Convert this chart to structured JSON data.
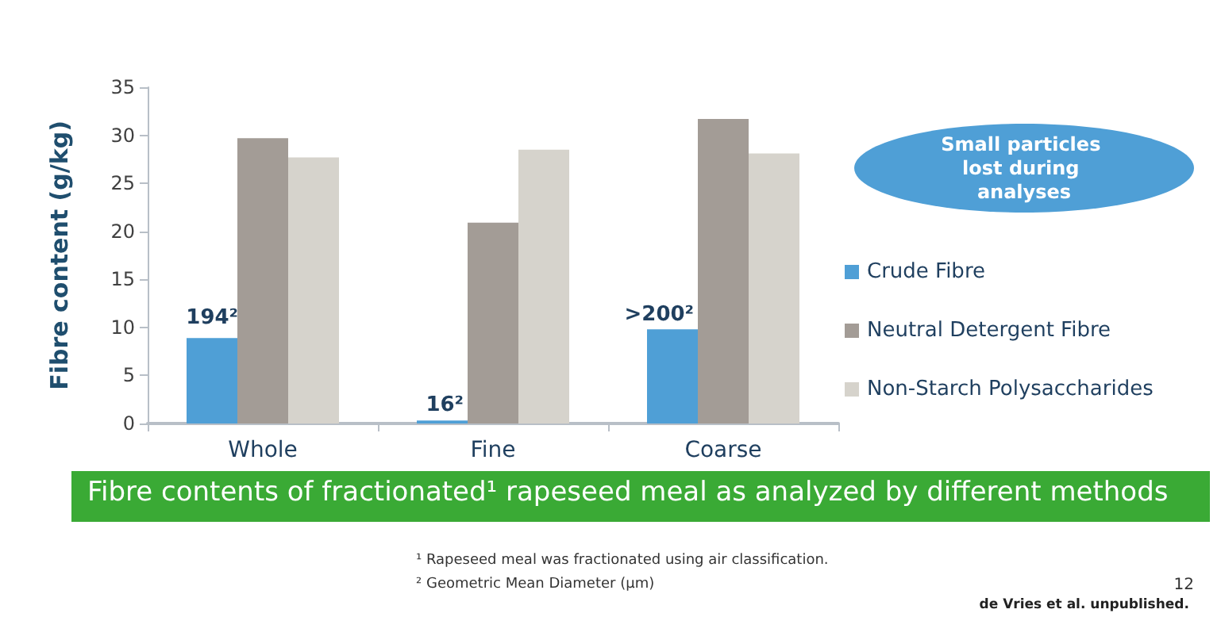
{
  "chart_data": {
    "type": "bar",
    "title": "Fibre contents of fractionated¹ rapeseed meal as analyzed by different methods",
    "ylabel": "Fibre content (g/kg)",
    "categories": [
      "Whole",
      "Fine",
      "Coarse"
    ],
    "series": [
      {
        "name": "Crude Fibre",
        "color": "#4f9fd6",
        "values": [
          8.9,
          0.3,
          9.8
        ]
      },
      {
        "name": "Neutral Detergent Fibre",
        "color": "#a39c96",
        "values": [
          29.7,
          20.9,
          31.7
        ]
      },
      {
        "name": "Non-Starch Polysaccharides",
        "color": "#d6d3cc",
        "values": [
          27.7,
          28.5,
          28.1
        ]
      }
    ],
    "ylim": [
      0,
      35
    ],
    "yticks": [
      0,
      5,
      10,
      15,
      20,
      25,
      30,
      35
    ],
    "grid": false,
    "legend": "right",
    "annotations": [
      "194²",
      "16²",
      ">200²",
      "Small particles lost during analyses",
      "¹ Rapeseed meal was fractionated using air classification.",
      "² Geometric Mean Diameter (µm)",
      "12",
      "de Vries et al. unpublished."
    ]
  }
}
